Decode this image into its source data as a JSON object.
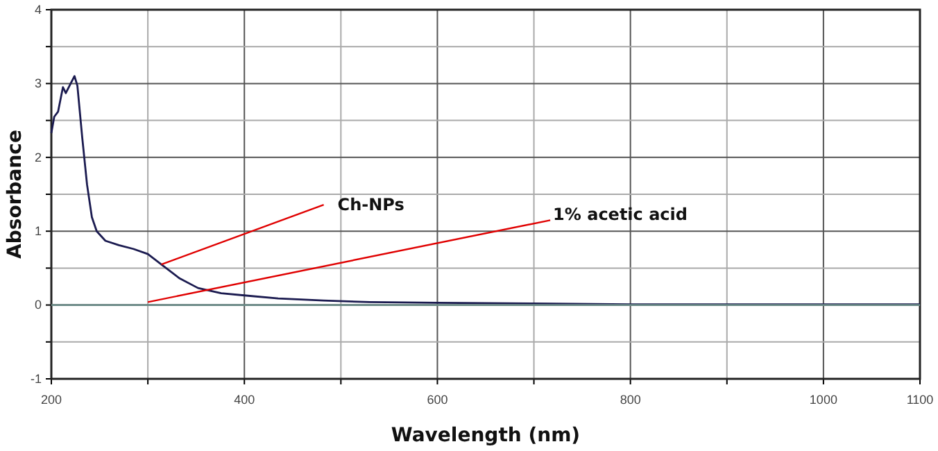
{
  "chart_data": {
    "type": "line",
    "xlabel": "Wavelength (nm)",
    "ylabel": "Absorbance",
    "xlim": [
      200,
      1100
    ],
    "ylim": [
      -1,
      4
    ],
    "xticks": [
      200,
      {
        "value": 300,
        "label": null
      },
      400,
      {
        "value": 500,
        "label": null
      },
      600,
      {
        "value": 700,
        "label": null
      },
      800,
      {
        "value": 900,
        "label": null
      },
      1000,
      1100
    ],
    "yticks": [
      -1,
      {
        "value": -0.5,
        "label": null
      },
      0,
      {
        "value": 0.5,
        "label": null
      },
      1,
      {
        "value": 1.5,
        "label": null
      },
      2,
      {
        "value": 2.5,
        "label": null
      },
      3,
      {
        "value": 3.5,
        "label": null
      },
      4
    ],
    "grid": true,
    "marker": "none",
    "line_style": "solid",
    "series": [
      {
        "color": "#1b1b50",
        "x": [
          200,
          203,
          207,
          212,
          215,
          220,
          224,
          227,
          232,
          237,
          242,
          247,
          256,
          270,
          285,
          300,
          314,
          333,
          352,
          376,
          400,
          435,
          482,
          530,
          600,
          700,
          800,
          900,
          1000,
          1100
        ],
        "values": [
          2.33,
          2.55,
          2.62,
          2.95,
          2.87,
          3.0,
          3.1,
          2.97,
          2.27,
          1.63,
          1.19,
          1.0,
          0.87,
          0.81,
          0.76,
          0.69,
          0.55,
          0.36,
          0.23,
          0.16,
          0.13,
          0.09,
          0.06,
          0.04,
          0.03,
          0.02,
          0.01,
          0.01,
          0.01,
          0.01
        ]
      },
      {
        "color": "#6a8a86",
        "x": [
          200,
          400,
          600,
          800,
          1000,
          1100
        ],
        "values": [
          0,
          0,
          0,
          0,
          0,
          0
        ]
      }
    ],
    "annotations": [
      {
        "text": "Ch-NPs",
        "x": 314,
        "y": 0.55
      },
      {
        "text": "1% acetic acid",
        "x": 300,
        "y": 0.04
      }
    ]
  }
}
